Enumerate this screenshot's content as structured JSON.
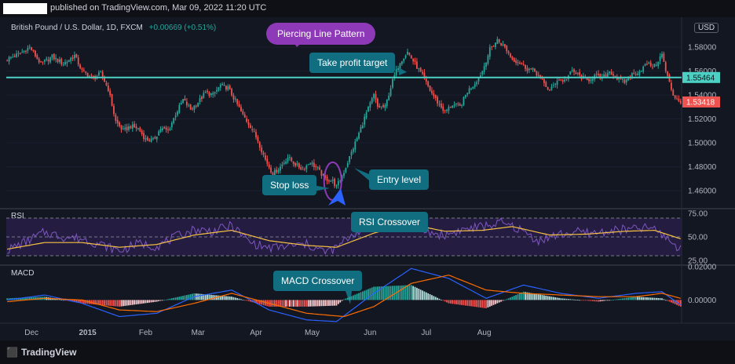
{
  "header": {
    "text": "published on TradingView.com, Mar 09, 2022 11:20 UTC"
  },
  "symbol": {
    "title": "British Pound / U.S. Dollar, 1D, FXCM",
    "change": "+0.00669 (+0.51%)"
  },
  "currency": "USD",
  "footer": {
    "brand": "TradingView"
  },
  "annotations": {
    "pattern": "Piercing Line Pattern",
    "take_profit": "Take profit target",
    "stop_loss": "Stop loss",
    "entry": "Entry level",
    "rsi": "RSI Crossover",
    "macd": "MACD Crossover"
  },
  "colors": {
    "up": "#26a69a",
    "down": "#ef5350",
    "line": "#4dd0c4",
    "rsi": "#7e57c2",
    "signal": "#f6c244",
    "macd": "#2962ff",
    "macd_signal": "#ff6d00"
  },
  "chart_data": [
    {
      "type": "candlestick",
      "ylim": [
        1.445,
        1.605
      ],
      "y_ticks": [
        "1.58000",
        "1.56000",
        "1.54000",
        "1.52000",
        "1.50000",
        "1.48000",
        "1.46000"
      ],
      "x_ticks": [
        "Dec",
        "2015",
        "Feb",
        "Mar",
        "Apr",
        "May",
        "Jun",
        "Jul",
        "Aug"
      ],
      "horizontal_line": {
        "value": 1.55464,
        "label": "1.55464"
      },
      "last_price": {
        "value": 1.53418,
        "label": "1.53418"
      },
      "close_path": [
        [
          0,
          1.57
        ],
        [
          6,
          1.574
        ],
        [
          12,
          1.58
        ],
        [
          18,
          1.566
        ],
        [
          24,
          1.572
        ],
        [
          30,
          1.566
        ],
        [
          36,
          1.573
        ],
        [
          40,
          1.56
        ],
        [
          46,
          1.554
        ],
        [
          50,
          1.558
        ],
        [
          54,
          1.545
        ],
        [
          58,
          1.518
        ],
        [
          62,
          1.51
        ],
        [
          66,
          1.514
        ],
        [
          70,
          1.512
        ],
        [
          74,
          1.503
        ],
        [
          78,
          1.502
        ],
        [
          82,
          1.512
        ],
        [
          86,
          1.51
        ],
        [
          90,
          1.524
        ],
        [
          94,
          1.536
        ],
        [
          98,
          1.528
        ],
        [
          102,
          1.534
        ],
        [
          106,
          1.542
        ],
        [
          110,
          1.54
        ],
        [
          114,
          1.548
        ],
        [
          118,
          1.546
        ],
        [
          122,
          1.535
        ],
        [
          126,
          1.523
        ],
        [
          130,
          1.514
        ],
        [
          134,
          1.502
        ],
        [
          138,
          1.486
        ],
        [
          142,
          1.474
        ],
        [
          146,
          1.48
        ],
        [
          150,
          1.488
        ],
        [
          154,
          1.482
        ],
        [
          158,
          1.478
        ],
        [
          162,
          1.484
        ],
        [
          166,
          1.478
        ],
        [
          170,
          1.47
        ],
        [
          174,
          1.468
        ],
        [
          176,
          1.463
        ],
        [
          180,
          1.476
        ],
        [
          184,
          1.492
        ],
        [
          188,
          1.508
        ],
        [
          192,
          1.525
        ],
        [
          196,
          1.54
        ],
        [
          198,
          1.53
        ],
        [
          202,
          1.53
        ],
        [
          206,
          1.552
        ],
        [
          210,
          1.568
        ],
        [
          214,
          1.576
        ],
        [
          218,
          1.566
        ],
        [
          222,
          1.556
        ],
        [
          226,
          1.544
        ],
        [
          230,
          1.534
        ],
        [
          234,
          1.526
        ],
        [
          238,
          1.532
        ],
        [
          242,
          1.53
        ],
        [
          246,
          1.543
        ],
        [
          250,
          1.55
        ],
        [
          254,
          1.56
        ],
        [
          258,
          1.578
        ],
        [
          262,
          1.586
        ],
        [
          266,
          1.58
        ],
        [
          270,
          1.57
        ],
        [
          274,
          1.567
        ],
        [
          278,
          1.562
        ],
        [
          282,
          1.56
        ],
        [
          286,
          1.552
        ],
        [
          290,
          1.543
        ],
        [
          294,
          1.553
        ],
        [
          298,
          1.552
        ],
        [
          302,
          1.56
        ],
        [
          306,
          1.556
        ],
        [
          310,
          1.552
        ],
        [
          314,
          1.556
        ],
        [
          318,
          1.554
        ],
        [
          322,
          1.56
        ],
        [
          326,
          1.554
        ],
        [
          330,
          1.551
        ],
        [
          334,
          1.557
        ],
        [
          338,
          1.56
        ],
        [
          342,
          1.566
        ],
        [
          346,
          1.564
        ],
        [
          350,
          1.574
        ],
        [
          352,
          1.56
        ],
        [
          356,
          1.54
        ],
        [
          360,
          1.534
        ]
      ]
    },
    {
      "type": "line",
      "title": "RSI",
      "ylim": [
        20,
        80
      ],
      "y_ticks": [
        "75.00",
        "50.00",
        "25.00"
      ],
      "levels": [
        70,
        50,
        30
      ],
      "rsi_path": [
        [
          0,
          36
        ],
        [
          10,
          45
        ],
        [
          20,
          55
        ],
        [
          30,
          50
        ],
        [
          40,
          48
        ],
        [
          50,
          42
        ],
        [
          60,
          35
        ],
        [
          70,
          43
        ],
        [
          80,
          40
        ],
        [
          90,
          50
        ],
        [
          100,
          58
        ],
        [
          110,
          56
        ],
        [
          120,
          62
        ],
        [
          130,
          44
        ],
        [
          140,
          38
        ],
        [
          150,
          40
        ],
        [
          160,
          42
        ],
        [
          170,
          34
        ],
        [
          176,
          38
        ],
        [
          184,
          52
        ],
        [
          194,
          63
        ],
        [
          204,
          69
        ],
        [
          214,
          74
        ],
        [
          224,
          55
        ],
        [
          234,
          52
        ],
        [
          244,
          58
        ],
        [
          254,
          61
        ],
        [
          264,
          65
        ],
        [
          274,
          58
        ],
        [
          284,
          46
        ],
        [
          294,
          52
        ],
        [
          304,
          55
        ],
        [
          314,
          54
        ],
        [
          324,
          57
        ],
        [
          334,
          58
        ],
        [
          344,
          60
        ],
        [
          352,
          50
        ],
        [
          360,
          36
        ]
      ],
      "signal_path": [
        [
          0,
          37
        ],
        [
          20,
          44
        ],
        [
          40,
          44
        ],
        [
          60,
          39
        ],
        [
          80,
          42
        ],
        [
          100,
          52
        ],
        [
          120,
          57
        ],
        [
          140,
          46
        ],
        [
          160,
          41
        ],
        [
          176,
          39
        ],
        [
          196,
          54
        ],
        [
          214,
          64
        ],
        [
          234,
          56
        ],
        [
          254,
          57
        ],
        [
          270,
          61
        ],
        [
          290,
          52
        ],
        [
          310,
          53
        ],
        [
          330,
          56
        ],
        [
          346,
          57
        ],
        [
          360,
          48
        ]
      ]
    },
    {
      "type": "line",
      "title": "MACD",
      "ylim": [
        -0.014,
        0.021
      ],
      "y_ticks": [
        "0.02000",
        "0.00000"
      ],
      "macd_path": [
        [
          0,
          0.0
        ],
        [
          20,
          0.003
        ],
        [
          40,
          -0.002
        ],
        [
          60,
          -0.01
        ],
        [
          80,
          -0.008
        ],
        [
          100,
          0.002
        ],
        [
          120,
          0.006
        ],
        [
          140,
          -0.006
        ],
        [
          160,
          -0.012
        ],
        [
          176,
          -0.013
        ],
        [
          196,
          0.004
        ],
        [
          216,
          0.019
        ],
        [
          236,
          0.013
        ],
        [
          256,
          0.001
        ],
        [
          276,
          0.009
        ],
        [
          296,
          0.004
        ],
        [
          316,
          0.001
        ],
        [
          336,
          0.004
        ],
        [
          350,
          0.005
        ],
        [
          360,
          -0.003
        ]
      ],
      "signal_path": [
        [
          0,
          -0.001
        ],
        [
          20,
          0.001
        ],
        [
          40,
          0.0
        ],
        [
          60,
          -0.006
        ],
        [
          80,
          -0.007
        ],
        [
          100,
          -0.002
        ],
        [
          120,
          0.004
        ],
        [
          140,
          -0.002
        ],
        [
          160,
          -0.008
        ],
        [
          180,
          -0.01
        ],
        [
          196,
          -0.004
        ],
        [
          216,
          0.01
        ],
        [
          236,
          0.015
        ],
        [
          256,
          0.006
        ],
        [
          276,
          0.004
        ],
        [
          296,
          0.003
        ],
        [
          316,
          0.002
        ],
        [
          336,
          0.002
        ],
        [
          350,
          0.004
        ],
        [
          360,
          0.001
        ]
      ]
    }
  ]
}
